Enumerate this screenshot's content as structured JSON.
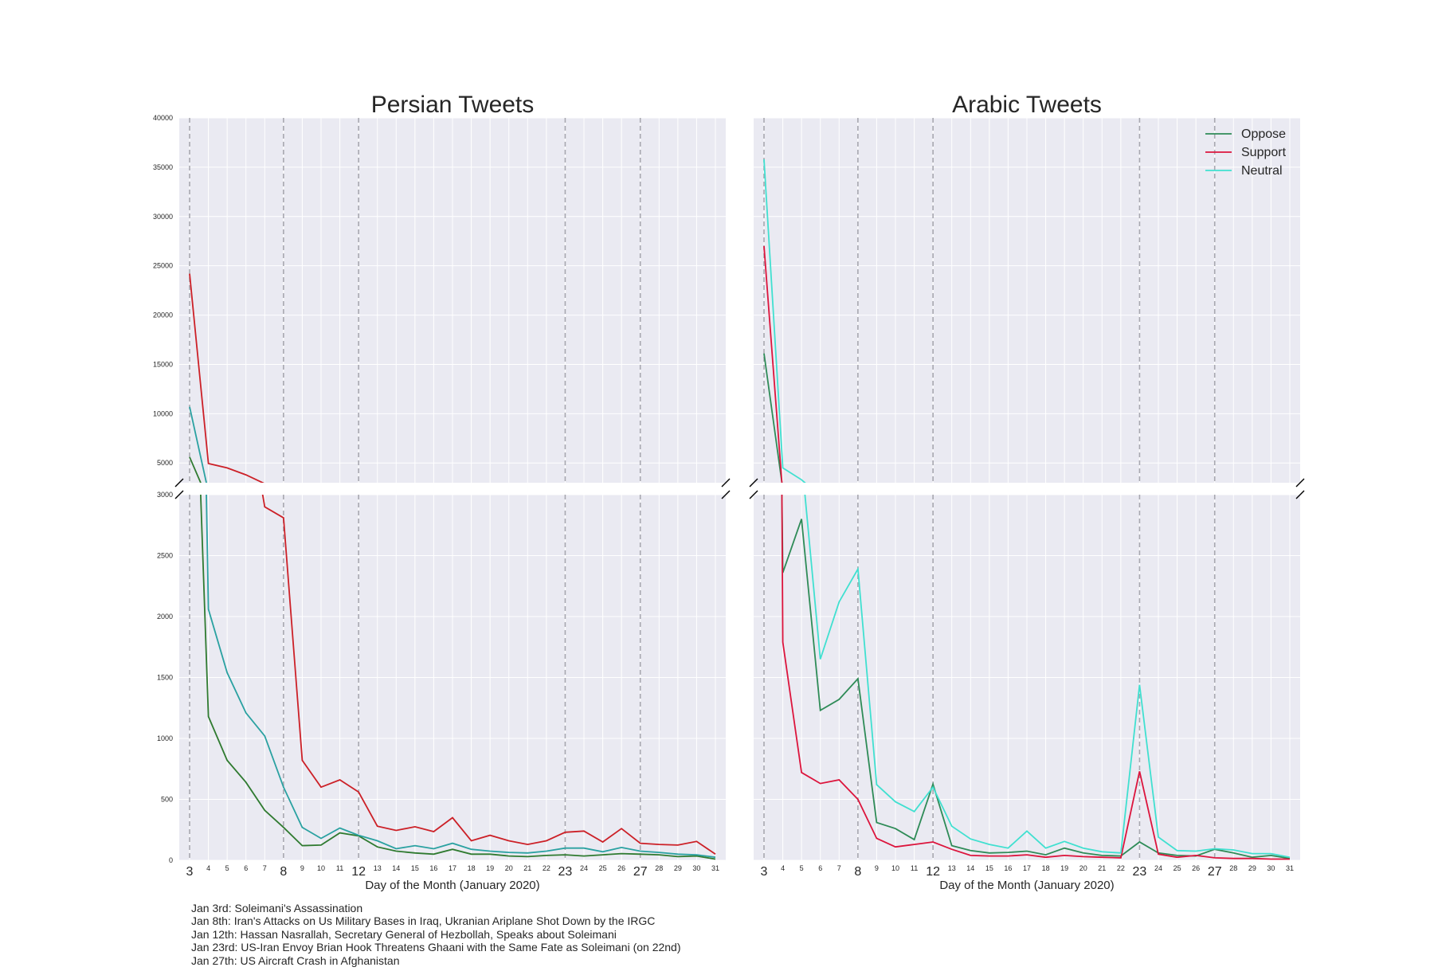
{
  "colors": {
    "panel_bg": "#eaeaf2",
    "grid": "#ffffff",
    "event_line": "#a8a8b0",
    "legend_text": "#262626"
  },
  "chart_data": [
    {
      "type": "line",
      "title": "Persian Tweets",
      "xlabel": "Day of the Month (January 2020)",
      "ylabel": "",
      "x": [
        3,
        4,
        5,
        6,
        7,
        8,
        9,
        10,
        11,
        12,
        13,
        14,
        15,
        16,
        17,
        18,
        19,
        20,
        21,
        22,
        23,
        24,
        25,
        26,
        27,
        28,
        29,
        30,
        31
      ],
      "highlight_days": [
        3,
        8,
        12,
        23,
        27
      ],
      "axis_break": true,
      "upper_ylim": [
        3000,
        40000
      ],
      "upper_yticks": [
        5000,
        10000,
        15000,
        20000,
        25000,
        30000,
        35000,
        40000
      ],
      "lower_ylim": [
        0,
        3000
      ],
      "lower_yticks": [
        0,
        500,
        1000,
        1500,
        2000,
        2500,
        3000
      ],
      "series": [
        {
          "name": "Oppose",
          "color": "#2f7a30",
          "values": [
            5600,
            1180,
            820,
            640,
            410,
            270,
            120,
            125,
            225,
            200,
            110,
            75,
            60,
            50,
            90,
            50,
            50,
            35,
            30,
            40,
            45,
            35,
            45,
            55,
            50,
            45,
            30,
            35,
            10
          ]
        },
        {
          "name": "Support",
          "color": "#cc2027",
          "values": [
            24200,
            4950,
            4500,
            3800,
            2900,
            2810,
            820,
            600,
            660,
            560,
            280,
            245,
            275,
            235,
            350,
            160,
            205,
            160,
            130,
            160,
            230,
            240,
            150,
            260,
            140,
            130,
            125,
            155,
            50
          ]
        },
        {
          "name": "Neutral",
          "color": "#2aa1a1",
          "values": [
            10700,
            2060,
            1540,
            1210,
            1020,
            600,
            270,
            180,
            265,
            205,
            160,
            95,
            120,
            95,
            140,
            90,
            75,
            65,
            60,
            75,
            100,
            100,
            70,
            105,
            75,
            65,
            50,
            45,
            25
          ]
        }
      ]
    },
    {
      "type": "line",
      "title": "Arabic Tweets",
      "xlabel": "Day of the Month (January 2020)",
      "ylabel": "",
      "x": [
        3,
        4,
        5,
        6,
        7,
        8,
        9,
        10,
        11,
        12,
        13,
        14,
        15,
        16,
        17,
        18,
        19,
        20,
        21,
        22,
        23,
        24,
        25,
        26,
        27,
        28,
        29,
        30,
        31
      ],
      "highlight_days": [
        3,
        8,
        12,
        23,
        27
      ],
      "axis_break": true,
      "upper_ylim": [
        3000,
        40000
      ],
      "lower_ylim": [
        0,
        3000
      ],
      "legend": "top-right",
      "series": [
        {
          "name": "Oppose",
          "color": "#2e8b57",
          "values": [
            16100,
            2360,
            2800,
            1230,
            1320,
            1490,
            310,
            260,
            170,
            625,
            120,
            80,
            60,
            65,
            75,
            45,
            100,
            60,
            40,
            35,
            150,
            60,
            40,
            35,
            90,
            60,
            25,
            40,
            15
          ]
        },
        {
          "name": "Support",
          "color": "#dc143c",
          "values": [
            27000,
            1790,
            720,
            630,
            660,
            500,
            180,
            110,
            130,
            150,
            90,
            40,
            35,
            35,
            45,
            25,
            40,
            30,
            25,
            20,
            730,
            50,
            25,
            40,
            20,
            15,
            15,
            10,
            10
          ]
        },
        {
          "name": "Neutral",
          "color": "#40e0d0",
          "values": [
            35800,
            4500,
            3300,
            1650,
            2120,
            2390,
            620,
            480,
            400,
            600,
            280,
            175,
            130,
            100,
            240,
            100,
            155,
            100,
            70,
            60,
            1440,
            190,
            80,
            75,
            95,
            85,
            55,
            55,
            25
          ]
        }
      ]
    }
  ],
  "notes": [
    "Jan 3rd: Soleimani's Assassination",
    "Jan 8th: Iran's Attacks on Us Military Bases in Iraq, Ukranian Ariplane Shot Down by the IRGC",
    "Jan 12th: Hassan Nasrallah, Secretary General of Hezbollah, Speaks about Soleimani",
    "Jan 23rd: US-Iran Envoy Brian Hook Threatens Ghaani with the Same Fate as Soleimani (on 22nd)",
    "Jan 27th: US Aircraft Crash in Afghanistan"
  ]
}
